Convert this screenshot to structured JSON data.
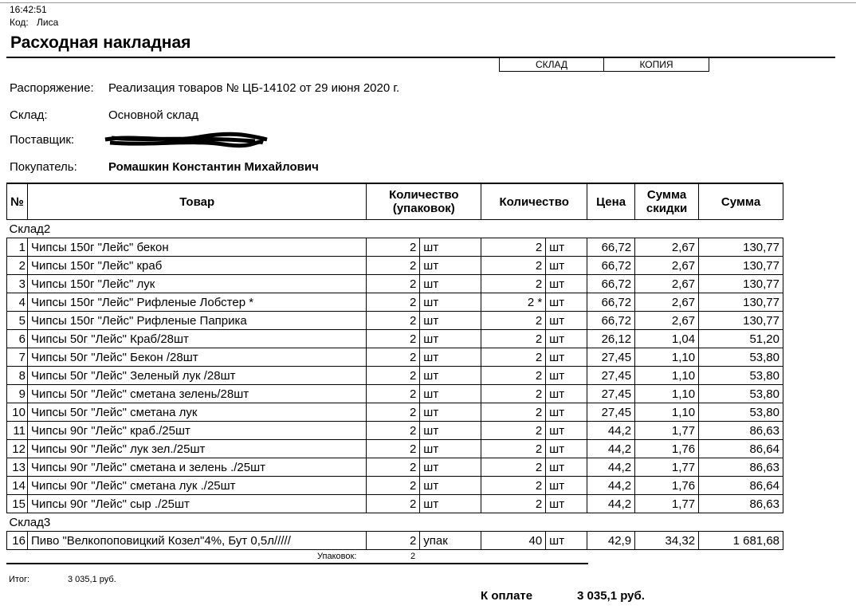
{
  "time": "16:42:51",
  "code_label": "Код:",
  "code_value": "Лиса",
  "title": "Расходная накладная",
  "boxes": [
    "СКЛАД",
    "КОПИЯ"
  ],
  "info": {
    "order_label": "Распоряжение:",
    "order_value": "Реализация товаров № ЦБ-14102 от 29 июня 2020 г.",
    "warehouse_label": "Склад:",
    "warehouse_value": "Основной склад",
    "supplier_label": "Поставщик:",
    "buyer_label": "Покупатель:",
    "buyer_value": "Ромашкин Константин Михайлович"
  },
  "columns": [
    "№",
    "Товар",
    "Количество (упаковок)",
    "Количество",
    "Цена",
    "Сумма скидки",
    "Сумма"
  ],
  "groups": [
    {
      "name": "Склад2",
      "rows": [
        [
          "1",
          "Чипсы  150г  \"Лейс\" бекон",
          "2",
          "шт",
          "2",
          "шт",
          "66,72",
          "2,67",
          "130,77"
        ],
        [
          "2",
          "Чипсы  150г  \"Лейс\" краб",
          "2",
          "шт",
          "2",
          "шт",
          "66,72",
          "2,67",
          "130,77"
        ],
        [
          "3",
          "Чипсы  150г  \"Лейс\" лук",
          "2",
          "шт",
          "2",
          "шт",
          "66,72",
          "2,67",
          "130,77"
        ],
        [
          "4",
          "Чипсы  150г  \"Лейс\" Рифленые Лобстер *",
          "2",
          "шт",
          "2 *",
          "шт",
          "66,72",
          "2,67",
          "130,77"
        ],
        [
          "5",
          "Чипсы  150г  \"Лейс\" Рифленые Паприка",
          "2",
          "шт",
          "2",
          "шт",
          "66,72",
          "2,67",
          "130,77"
        ],
        [
          "6",
          "Чипсы  50г \"Лейс\"  Краб/28шт",
          "2",
          "шт",
          "2",
          "шт",
          "26,12",
          "1,04",
          "51,20"
        ],
        [
          "7",
          "Чипсы  50г \"Лейс\" Бекон /28шт",
          "2",
          "шт",
          "2",
          "шт",
          "27,45",
          "1,10",
          "53,80"
        ],
        [
          "8",
          "Чипсы  50г \"Лейс\" Зеленый лук /28шт",
          "2",
          "шт",
          "2",
          "шт",
          "27,45",
          "1,10",
          "53,80"
        ],
        [
          "9",
          "Чипсы  50г \"Лейс\" сметана зелень/28шт",
          "2",
          "шт",
          "2",
          "шт",
          "27,45",
          "1,10",
          "53,80"
        ],
        [
          "10",
          "Чипсы  50г \"Лейс\" сметана лук",
          "2",
          "шт",
          "2",
          "шт",
          "27,45",
          "1,10",
          "53,80"
        ],
        [
          "11",
          "Чипсы  90г \"Лейс\"  краб./25шт",
          "2",
          "шт",
          "2",
          "шт",
          "44,2",
          "1,77",
          "86,63"
        ],
        [
          "12",
          "Чипсы  90г \"Лейс\"  лук зел./25шт",
          "2",
          "шт",
          "2",
          "шт",
          "44,2",
          "1,76",
          "86,64"
        ],
        [
          "13",
          "Чипсы  90г \"Лейс\"  сметана и зелень ./25шт",
          "2",
          "шт",
          "2",
          "шт",
          "44,2",
          "1,77",
          "86,63"
        ],
        [
          "14",
          "Чипсы  90г \"Лейс\"  сметана лук ./25шт",
          "2",
          "шт",
          "2",
          "шт",
          "44,2",
          "1,76",
          "86,64"
        ],
        [
          "15",
          "Чипсы  90г \"Лейс\"  сыр ./25шт",
          "2",
          "шт",
          "2",
          "шт",
          "44,2",
          "1,77",
          "86,63"
        ]
      ]
    },
    {
      "name": "Склад3",
      "rows": [
        [
          "16",
          "Пиво \"Велкопоповицкий Козел\"4%, Бут 0,5л/////",
          "2",
          "упак",
          "40",
          "шт",
          "42,9",
          "34,32",
          "1 681,68"
        ]
      ]
    }
  ],
  "packages_label": "Упаковок:",
  "packages_value": "2",
  "total_label": "Итог:",
  "total_value": "3 035,1  руб.",
  "pay_label": "К оплате",
  "pay_value": "3 035,1  руб."
}
